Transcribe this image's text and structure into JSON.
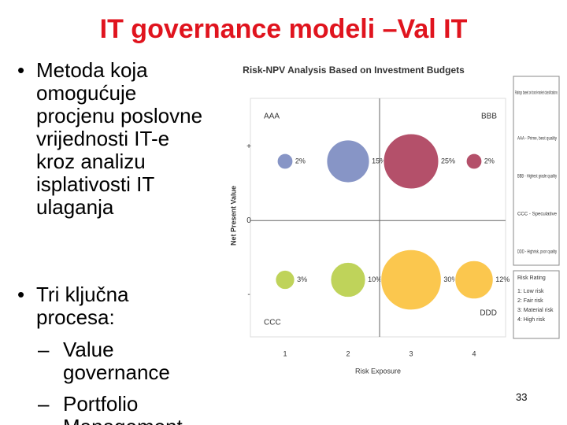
{
  "slide": {
    "title": "IT governance modeli –Val IT",
    "bullets": [
      "Metoda koja omogućuje procjenu poslovne vrijednosti IT-e kroz analizu isplativosti IT ulaganja",
      "Tri ključna procesa:"
    ],
    "sub_bullets": [
      "Value governance",
      "Portfolio Management"
    ],
    "page_number": "33"
  },
  "chart_data": {
    "type": "bubble",
    "title": "Risk-NPV Analysis Based on Investment Budgets",
    "x_label": "Risk Exposure",
    "y_label": "Net Present Value",
    "x": [
      1,
      2,
      3,
      4,
      1,
      2,
      3,
      4
    ],
    "y": [
      0.8,
      0.8,
      0.8,
      0.8,
      -0.8,
      -0.8,
      -0.8,
      -0.8
    ],
    "sizes": [
      2,
      15,
      25,
      2,
      3,
      10,
      30,
      12
    ],
    "value_labels": [
      "2%",
      "15%",
      "25%",
      "2%",
      "3%",
      "10%",
      "30%",
      "12%"
    ],
    "colors": [
      "#8795c6",
      "#8795c6",
      "#b4506a",
      "#b4506a",
      "#bfd35a",
      "#bfd35a",
      "#fbc74e",
      "#fbc74e"
    ],
    "xlim": [
      0.45,
      4.5
    ],
    "ylim": [
      -1.57,
      1.65
    ],
    "xticks": [
      1,
      2,
      3,
      4
    ],
    "yticks": [
      {
        "value": 1,
        "label": "+"
      },
      0,
      {
        "value": -1,
        "label": "-"
      }
    ],
    "quadrant_labels": [
      "AAA",
      "BBB",
      "CCC",
      "DDD"
    ],
    "legend_ratings": {
      "title": "Ratings based on bond-market classifications",
      "items": [
        "AAA - Prime, best quality",
        "BBB - Highest grade quality",
        "CCC - Speculative",
        "DDD - Highrisk, poor quality"
      ]
    },
    "legend_risk": {
      "title": "Risk Rating",
      "items": [
        "1: Low risk",
        "2: Fair risk",
        "3: Material risk",
        "4: High risk"
      ]
    }
  }
}
